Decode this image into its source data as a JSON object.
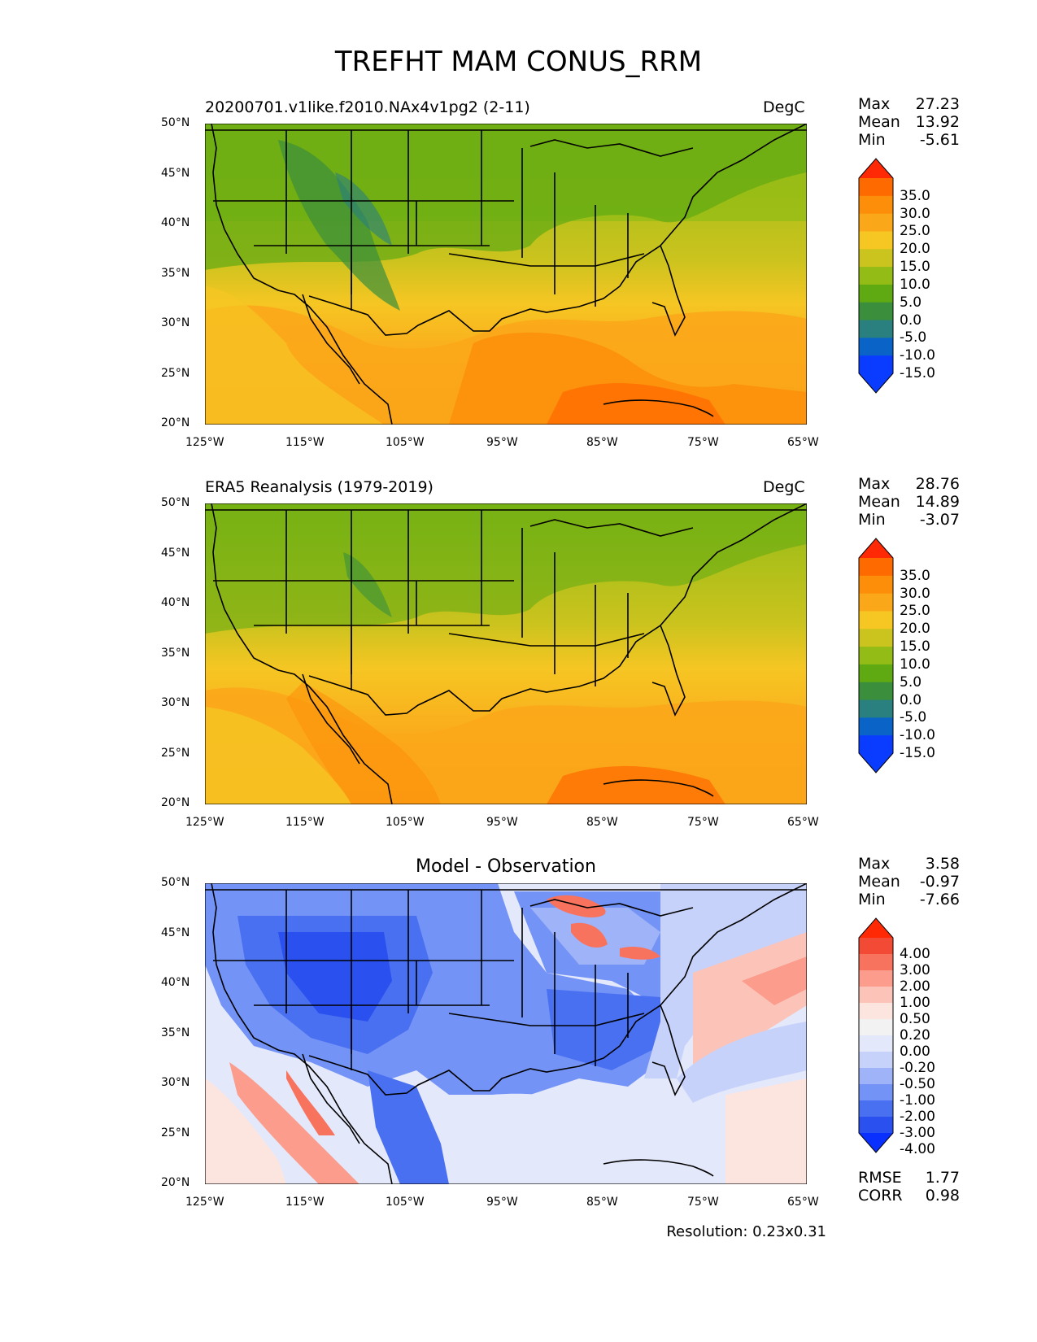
{
  "title": "TREFHT MAM CONUS_RRM",
  "lon_labels": [
    "125°W",
    "115°W",
    "105°W",
    "95°W",
    "85°W",
    "75°W",
    "65°W"
  ],
  "lat_labels": [
    "50°N",
    "45°N",
    "40°N",
    "35°N",
    "30°N",
    "25°N",
    "20°N"
  ],
  "panels": [
    {
      "title": "20200701.v1like.f2010.NAx4v1pg2 (2-11)",
      "units": "DegC",
      "stats": [
        {
          "label": "Max",
          "value": "27.23"
        },
        {
          "label": "Mean",
          "value": "13.92"
        },
        {
          "label": "Min",
          "value": "-5.61"
        }
      ],
      "colorbar": {
        "labels": [
          "35.0",
          "30.0",
          "25.0",
          "20.0",
          "15.0",
          "10.0",
          "5.0",
          "0.0",
          "-5.0",
          "-10.0",
          "-15.0"
        ],
        "colors": [
          "#ff2a05",
          "#ff6a00",
          "#fd8e0a",
          "#fba71a",
          "#f6c623",
          "#cbc31e",
          "#93bc16",
          "#5fa912",
          "#3b8f3c",
          "#2a7f7f",
          "#0a64c8",
          "#0a3cff",
          "#ff3a10"
        ]
      }
    },
    {
      "title": "ERA5 Reanalysis (1979-2019)",
      "units": "DegC",
      "stats": [
        {
          "label": "Max",
          "value": "28.76"
        },
        {
          "label": "Mean",
          "value": "14.89"
        },
        {
          "label": "Min",
          "value": "-3.07"
        }
      ],
      "colorbar": {
        "labels": [
          "35.0",
          "30.0",
          "25.0",
          "20.0",
          "15.0",
          "10.0",
          "5.0",
          "0.0",
          "-5.0",
          "-10.0",
          "-15.0"
        ],
        "colors": [
          "#ff2a05",
          "#ff6a00",
          "#fd8e0a",
          "#fba71a",
          "#f6c623",
          "#cbc31e",
          "#93bc16",
          "#5fa912",
          "#3b8f3c",
          "#2a7f7f",
          "#0a64c8",
          "#0a3cff",
          "#ff3a10"
        ]
      }
    },
    {
      "title": "Model - Observation",
      "units": "",
      "stats": [
        {
          "label": "Max",
          "value": "3.58"
        },
        {
          "label": "Mean",
          "value": "-0.97"
        },
        {
          "label": "Min",
          "value": "-7.66"
        }
      ],
      "colorbar": {
        "labels": [
          "4.00",
          "3.00",
          "2.00",
          "1.00",
          "0.50",
          "0.20",
          "0.00",
          "-0.20",
          "-0.50",
          "-1.00",
          "-2.00",
          "-3.00",
          "-4.00"
        ],
        "colors": [
          "#ff2a05",
          "#f24a35",
          "#f8735e",
          "#fb9c8c",
          "#fcc4b8",
          "#fde5df",
          "#f2f2f2",
          "#e3e8fb",
          "#c6d2fa",
          "#9fb3f8",
          "#7493f6",
          "#4a70f2",
          "#2a50f0",
          "#0a30ff"
        ]
      },
      "extra_stats": [
        {
          "label": "RMSE",
          "value": "1.77"
        },
        {
          "label": "CORR",
          "value": "0.98"
        }
      ]
    }
  ],
  "resolution": "Resolution: 0.23x0.31"
}
